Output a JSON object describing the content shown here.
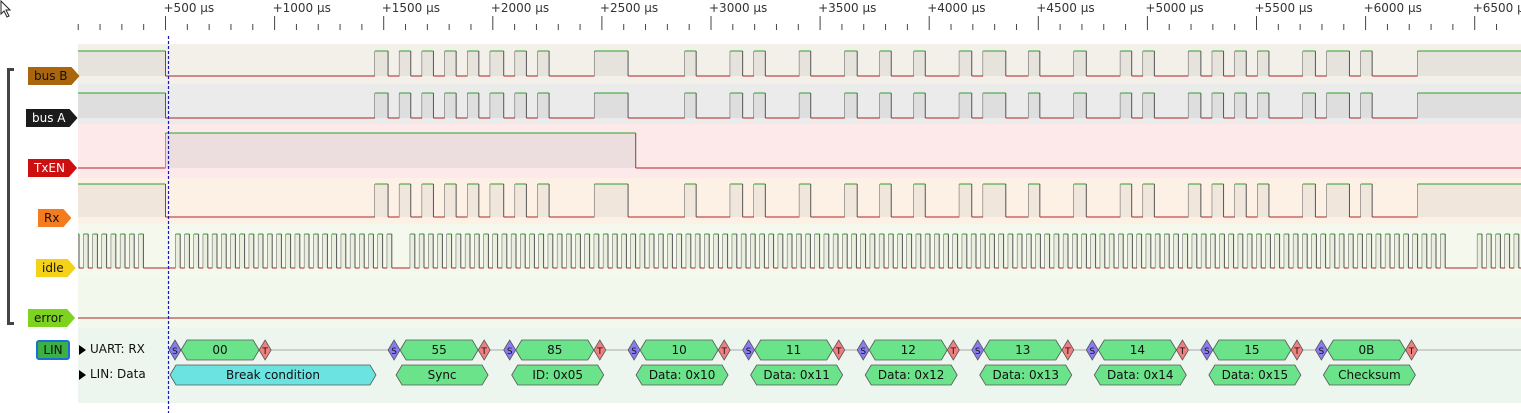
{
  "ruler": {
    "ticks": [
      {
        "label": "+500 µs",
        "t": 500
      },
      {
        "label": "+1000 µs",
        "t": 1000
      },
      {
        "label": "+1500 µs",
        "t": 1500
      },
      {
        "label": "+2000 µs",
        "t": 2000
      },
      {
        "label": "+2500 µs",
        "t": 2500
      },
      {
        "label": "+3000 µs",
        "t": 3000
      },
      {
        "label": "+3500 µs",
        "t": 3500
      },
      {
        "label": "+4000 µs",
        "t": 4000
      },
      {
        "label": "+4500 µs",
        "t": 4500
      },
      {
        "label": "+5000 µs",
        "t": 5000
      },
      {
        "label": "+5500 µs",
        "t": 5500
      },
      {
        "label": "+6000 µs",
        "t": 6000
      },
      {
        "label": "+6500 µs",
        "t": 6500
      }
    ]
  },
  "channels": [
    {
      "name": "bus B",
      "color": "#a9660d",
      "text_color": "#111111"
    },
    {
      "name": "bus A",
      "color": "#1b1b1b",
      "text_color": "#ffffff"
    },
    {
      "name": "TxEN",
      "color": "#cc1010",
      "text_color": "#ffffff"
    },
    {
      "name": "Rx",
      "color": "#f47c1e",
      "text_color": "#111111"
    },
    {
      "name": "idle",
      "color": "#f5d21a",
      "text_color": "#111111"
    },
    {
      "name": "error",
      "color": "#7ed321",
      "text_color": "#111111"
    }
  ],
  "decoder": {
    "badge": "LIN",
    "rows": [
      {
        "name": "UART: RX",
        "annotations": [
          {
            "text": "S",
            "kind": "start"
          },
          {
            "text": "00",
            "kind": "data"
          },
          {
            "text": "T",
            "kind": "stop"
          },
          {
            "text": "S",
            "kind": "start"
          },
          {
            "text": "55",
            "kind": "data"
          },
          {
            "text": "T",
            "kind": "stop"
          },
          {
            "text": "S",
            "kind": "start"
          },
          {
            "text": "85",
            "kind": "data"
          },
          {
            "text": "T",
            "kind": "stop"
          },
          {
            "text": "S",
            "kind": "start"
          },
          {
            "text": "10",
            "kind": "data"
          },
          {
            "text": "T",
            "kind": "stop"
          },
          {
            "text": "S",
            "kind": "start"
          },
          {
            "text": "11",
            "kind": "data"
          },
          {
            "text": "T",
            "kind": "stop"
          },
          {
            "text": "S",
            "kind": "start"
          },
          {
            "text": "12",
            "kind": "data"
          },
          {
            "text": "T",
            "kind": "stop"
          },
          {
            "text": "S",
            "kind": "start"
          },
          {
            "text": "13",
            "kind": "data"
          },
          {
            "text": "T",
            "kind": "stop"
          },
          {
            "text": "S",
            "kind": "start"
          },
          {
            "text": "14",
            "kind": "data"
          },
          {
            "text": "T",
            "kind": "stop"
          },
          {
            "text": "S",
            "kind": "start"
          },
          {
            "text": "15",
            "kind": "data"
          },
          {
            "text": "T",
            "kind": "stop"
          },
          {
            "text": "S",
            "kind": "start"
          },
          {
            "text": "0B",
            "kind": "data"
          },
          {
            "text": "T",
            "kind": "stop"
          }
        ]
      },
      {
        "name": "LIN: Data",
        "annotations": [
          {
            "text": "Break condition",
            "kind": "break"
          },
          {
            "text": "Sync",
            "kind": "frame"
          },
          {
            "text": "ID: 0x05",
            "kind": "frame"
          },
          {
            "text": "Data: 0x10",
            "kind": "frame"
          },
          {
            "text": "Data: 0x11",
            "kind": "frame"
          },
          {
            "text": "Data: 0x12",
            "kind": "frame"
          },
          {
            "text": "Data: 0x13",
            "kind": "frame"
          },
          {
            "text": "Data: 0x14",
            "kind": "frame"
          },
          {
            "text": "Data: 0x15",
            "kind": "frame"
          },
          {
            "text": "Checksum",
            "kind": "frame"
          }
        ]
      }
    ]
  },
  "colors": {
    "signal_high": "#2ca02c",
    "signal_low": "#b22222",
    "start": "#8a7cf0",
    "stop": "#f08080",
    "data": "#6be38a",
    "break": "#6be3e0",
    "cursor": "#1a1aaa"
  }
}
